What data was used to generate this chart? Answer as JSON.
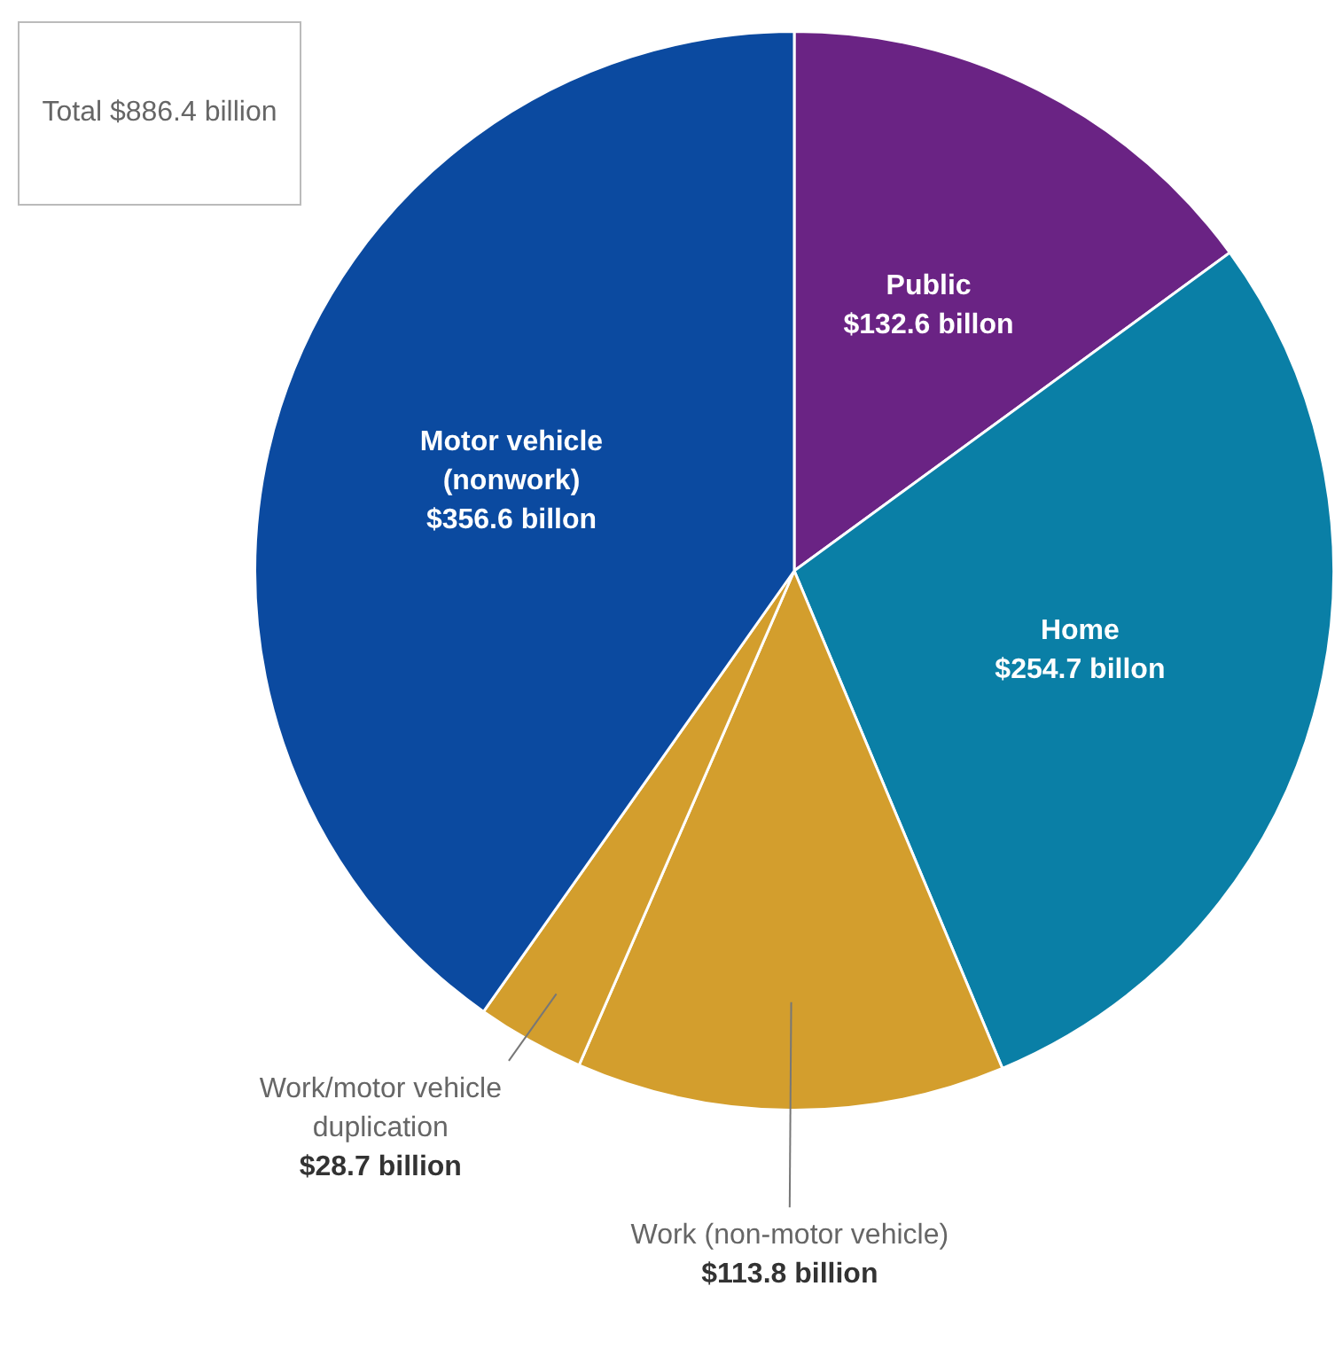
{
  "chart_data": {
    "type": "pie",
    "categories": [
      "Public",
      "Home",
      "Work (non-motor vehicle)",
      "Work/motor vehicle duplication",
      "Motor vehicle (nonwork)"
    ],
    "values": [
      132.6,
      254.7,
      113.8,
      28.7,
      356.6
    ],
    "colors": [
      "#6a2384",
      "#0a7fa6",
      "#d39e2d",
      "#d39e2d",
      "#0b4aa0"
    ],
    "value_labels": [
      "$132.6 billon",
      "$254.7 billon",
      "$113.8 billion",
      "$28.7 billion",
      "$356.6 billon"
    ],
    "annotations": [
      "Total $886.4 billion"
    ],
    "legend": false
  }
}
